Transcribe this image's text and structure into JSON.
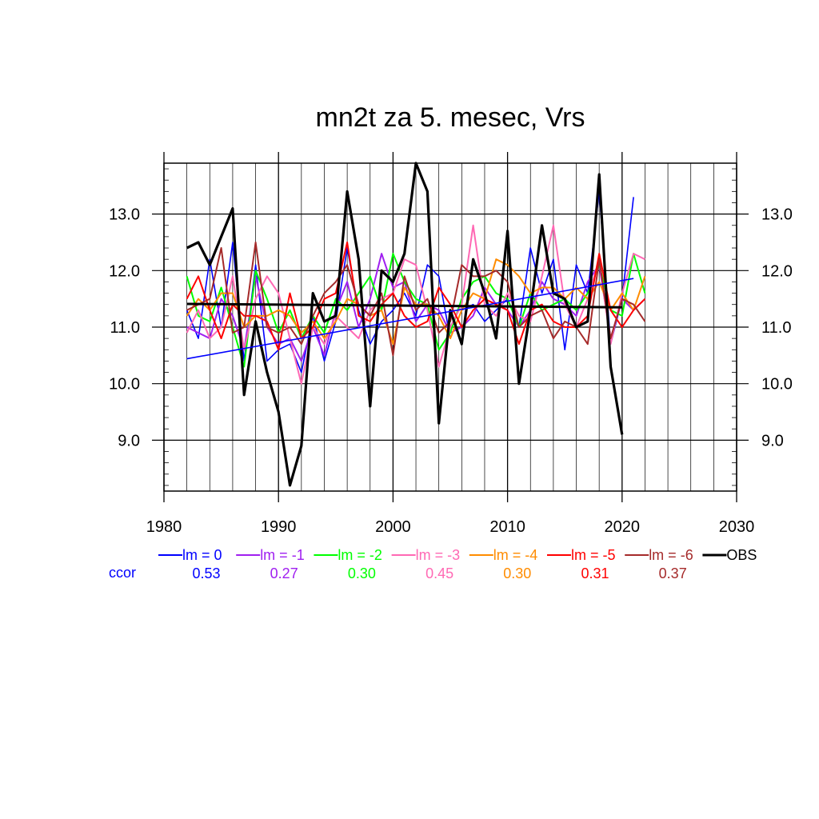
{
  "chart_data": {
    "type": "line",
    "title": "mn2t za 5. mesec, Vrs",
    "xlabel": "",
    "ylabel": "",
    "xlim": [
      1980,
      2030
    ],
    "ylim": [
      8.1,
      13.9
    ],
    "grid": true,
    "x_ticks": [
      1980,
      1990,
      2000,
      2010,
      2020,
      2030
    ],
    "x_tick_labels": [
      "1980",
      "1990",
      "2000",
      "2010",
      "2020",
      "2030"
    ],
    "y_ticks": [
      9.0,
      10.0,
      11.0,
      12.0,
      13.0
    ],
    "y_tick_labels": [
      "9.0",
      "10.0",
      "11.0",
      "12.0",
      "13.0"
    ],
    "ccor_label": "ccor",
    "ccor_color": "#0000ff",
    "series": [
      {
        "name": "lm = 0",
        "color": "#0000ff",
        "ccor": "0.53",
        "x": [
          1982,
          1983,
          1984,
          1985,
          1986,
          1987,
          1988,
          1989,
          1990,
          1991,
          1992,
          1993,
          1994,
          1995,
          1996,
          1997,
          1998,
          1999,
          2000,
          2001,
          2002,
          2003,
          2004,
          2005,
          2006,
          2007,
          2008,
          2009,
          2010,
          2011,
          2012,
          2013,
          2014,
          2015,
          2016,
          2017,
          2018,
          2019,
          2020,
          2021
        ],
        "y": [
          11.3,
          10.8,
          12.2,
          11.0,
          12.5,
          10.4,
          12.1,
          10.4,
          10.6,
          10.7,
          10.2,
          11.2,
          10.4,
          11.1,
          12.4,
          11.3,
          10.7,
          11.1,
          11.3,
          11.6,
          11.2,
          12.1,
          11.9,
          10.8,
          11.3,
          11.4,
          11.1,
          11.3,
          11.5,
          11.0,
          12.4,
          11.6,
          12.2,
          10.6,
          12.1,
          11.6,
          13.4,
          10.7,
          11.5,
          13.3
        ]
      },
      {
        "name": "lm = -1",
        "color": "#a020f0",
        "ccor": "0.27",
        "x": [
          1982,
          1983,
          1984,
          1985,
          1986,
          1987,
          1988,
          1989,
          1990,
          1991,
          1992,
          1993,
          1994,
          1995,
          1996,
          1997,
          1998,
          1999,
          2000,
          2001,
          2002,
          2003,
          2004,
          2005,
          2006,
          2007,
          2008,
          2009,
          2010,
          2011,
          2012,
          2013,
          2014,
          2015,
          2016,
          2017,
          2018,
          2019,
          2020,
          2021,
          2022
        ],
        "y": [
          11.0,
          10.9,
          10.8,
          11.5,
          11.2,
          10.6,
          11.9,
          11.0,
          10.7,
          10.8,
          10.4,
          11.0,
          10.5,
          11.3,
          11.8,
          11.0,
          11.5,
          12.3,
          11.7,
          11.8,
          11.1,
          11.4,
          11.3,
          10.9,
          11.0,
          11.2,
          11.7,
          11.4,
          11.3,
          11.0,
          11.3,
          11.8,
          11.5,
          11.4,
          11.2,
          11.8,
          12.1,
          10.8,
          11.5,
          11.3,
          11.5
        ]
      },
      {
        "name": "lm = -2",
        "color": "#00ff00",
        "ccor": "0.30",
        "x": [
          1982,
          1983,
          1984,
          1985,
          1986,
          1987,
          1988,
          1989,
          1990,
          1991,
          1992,
          1993,
          1994,
          1995,
          1996,
          1997,
          1998,
          1999,
          2000,
          2001,
          2002,
          2003,
          2004,
          2005,
          2006,
          2007,
          2008,
          2009,
          2010,
          2011,
          2012,
          2013,
          2014,
          2015,
          2016,
          2017,
          2018,
          2019,
          2020,
          2021,
          2022
        ],
        "y": [
          11.9,
          11.2,
          11.1,
          11.7,
          11.0,
          10.3,
          12.0,
          11.5,
          10.9,
          11.3,
          10.8,
          11.2,
          10.9,
          11.5,
          11.3,
          11.6,
          11.9,
          11.3,
          12.3,
          11.8,
          11.5,
          11.4,
          10.6,
          10.9,
          11.5,
          11.8,
          11.9,
          11.6,
          11.5,
          11.0,
          11.6,
          11.3,
          11.4,
          11.5,
          11.3,
          11.6,
          12.1,
          11.3,
          11.2,
          12.3,
          11.6
        ]
      },
      {
        "name": "lm = -3",
        "color": "#ff69b4",
        "ccor": "0.45",
        "x": [
          1982,
          1983,
          1984,
          1985,
          1986,
          1987,
          1988,
          1989,
          1990,
          1991,
          1992,
          1993,
          1994,
          1995,
          1996,
          1997,
          1998,
          1999,
          2000,
          2001,
          2002,
          2003,
          2004,
          2005,
          2006,
          2007,
          2008,
          2009,
          2010,
          2011,
          2012,
          2013,
          2014,
          2015,
          2016,
          2017,
          2018,
          2019,
          2020,
          2021,
          2022
        ],
        "y": [
          10.9,
          11.3,
          10.8,
          11.0,
          11.9,
          10.6,
          11.5,
          11.9,
          11.6,
          10.8,
          10.0,
          11.0,
          10.7,
          11.2,
          11.0,
          10.8,
          11.3,
          11.5,
          11.6,
          12.2,
          12.1,
          11.3,
          10.3,
          11.0,
          11.4,
          12.8,
          11.4,
          11.2,
          11.6,
          11.2,
          11.1,
          11.9,
          12.8,
          11.4,
          11.0,
          11.5,
          12.2,
          10.7,
          11.6,
          12.3,
          12.2
        ]
      },
      {
        "name": "lm = -4",
        "color": "#ff8c00",
        "ccor": "0.30",
        "x": [
          1982,
          1983,
          1984,
          1985,
          1986,
          1987,
          1988,
          1989,
          1990,
          1991,
          1992,
          1993,
          1994,
          1995,
          1996,
          1997,
          1998,
          1999,
          2000,
          2001,
          2002,
          2003,
          2004,
          2005,
          2006,
          2007,
          2008,
          2009,
          2010,
          2011,
          2012,
          2013,
          2014,
          2015,
          2016,
          2017,
          2018,
          2019,
          2020,
          2021,
          2022
        ],
        "y": [
          11.2,
          11.5,
          11.3,
          11.6,
          11.6,
          11.0,
          11.2,
          11.2,
          11.3,
          11.2,
          10.9,
          11.1,
          10.8,
          11.1,
          11.5,
          11.4,
          11.2,
          11.3,
          10.7,
          11.7,
          11.4,
          11.4,
          11.2,
          10.8,
          11.3,
          11.6,
          11.5,
          12.2,
          12.1,
          11.9,
          11.6,
          11.7,
          11.7,
          11.5,
          11.7,
          11.5,
          11.8,
          11.3,
          11.6,
          11.3,
          11.9
        ]
      },
      {
        "name": "lm = -5",
        "color": "#ff0000",
        "ccor": "0.31",
        "x": [
          1982,
          1983,
          1984,
          1985,
          1986,
          1987,
          1988,
          1989,
          1990,
          1991,
          1992,
          1993,
          1994,
          1995,
          1996,
          1997,
          1998,
          1999,
          2000,
          2001,
          2002,
          2003,
          2004,
          2005,
          2006,
          2007,
          2008,
          2009,
          2010,
          2011,
          2012,
          2013,
          2014,
          2015,
          2016,
          2017,
          2018,
          2019,
          2020,
          2021,
          2022
        ],
        "y": [
          11.5,
          11.9,
          11.3,
          10.8,
          11.4,
          11.2,
          11.2,
          11.1,
          10.6,
          11.6,
          10.8,
          11.0,
          11.5,
          11.6,
          12.5,
          11.2,
          11.1,
          11.4,
          11.6,
          11.2,
          11.0,
          11.1,
          11.7,
          11.4,
          11.0,
          11.3,
          11.5,
          11.4,
          11.3,
          10.7,
          11.3,
          11.4,
          11.1,
          11.0,
          11.0,
          11.2,
          12.3,
          11.3,
          11.0,
          11.3,
          11.5
        ]
      },
      {
        "name": "lm = -6",
        "color": "#a52a2a",
        "ccor": "0.37",
        "x": [
          1982,
          1983,
          1984,
          1985,
          1986,
          1987,
          1988,
          1989,
          1990,
          1991,
          1992,
          1993,
          1994,
          1995,
          1996,
          1997,
          1998,
          1999,
          2000,
          2001,
          2002,
          2003,
          2004,
          2005,
          2006,
          2007,
          2008,
          2009,
          2010,
          2011,
          2012,
          2013,
          2014,
          2015,
          2016,
          2017,
          2018,
          2019,
          2020,
          2021,
          2022
        ],
        "y": [
          11.3,
          11.4,
          11.5,
          12.4,
          10.9,
          11.0,
          12.5,
          11.0,
          10.9,
          11.0,
          10.7,
          11.2,
          11.6,
          11.8,
          12.1,
          11.4,
          11.2,
          11.6,
          10.5,
          11.9,
          11.3,
          11.5,
          10.9,
          11.1,
          12.1,
          11.9,
          11.9,
          12.0,
          11.8,
          11.0,
          11.2,
          11.3,
          10.8,
          11.1,
          11.0,
          10.7,
          12.2,
          10.8,
          11.5,
          11.4,
          11.1
        ]
      },
      {
        "name": "OBS",
        "color": "#000000",
        "ccor": "",
        "x": [
          1982,
          1983,
          1984,
          1985,
          1986,
          1987,
          1988,
          1989,
          1990,
          1991,
          1992,
          1993,
          1994,
          1995,
          1996,
          1997,
          1998,
          1999,
          2000,
          2001,
          2002,
          2003,
          2004,
          2005,
          2006,
          2007,
          2008,
          2009,
          2010,
          2011,
          2012,
          2013,
          2014,
          2015,
          2016,
          2017,
          2018,
          2019,
          2020
        ],
        "y": [
          12.4,
          12.5,
          12.1,
          12.6,
          13.1,
          9.8,
          11.1,
          10.2,
          9.5,
          8.2,
          8.9,
          11.6,
          11.1,
          11.2,
          13.4,
          12.2,
          9.6,
          12.0,
          11.8,
          12.3,
          13.9,
          13.4,
          9.3,
          11.3,
          10.7,
          12.2,
          11.6,
          10.8,
          12.7,
          10.0,
          11.3,
          12.8,
          11.6,
          11.5,
          11.0,
          11.1,
          13.7,
          10.3,
          9.1
        ]
      }
    ],
    "trend_lines": [
      {
        "series": "lm = 0",
        "color": "#0000ff",
        "x": [
          1982,
          2021
        ],
        "y": [
          10.44,
          11.86
        ]
      },
      {
        "series": "OBS",
        "color": "#000000",
        "x": [
          1982,
          2020
        ],
        "y": [
          11.41,
          11.35
        ]
      }
    ]
  }
}
